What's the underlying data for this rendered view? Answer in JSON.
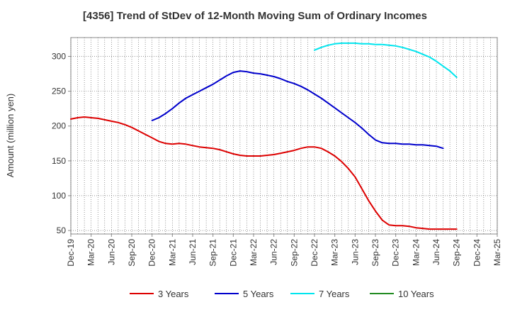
{
  "chart_data": {
    "type": "line",
    "title": "[4356]  Trend of StDev of 12-Month Moving Sum of Ordinary Incomes",
    "xlabel": "",
    "ylabel": "Amount (million yen)",
    "ylim": [
      45,
      327
    ],
    "yticks": [
      50,
      100,
      150,
      200,
      250,
      300
    ],
    "xticks": [
      "Dec-19",
      "Mar-20",
      "Jun-20",
      "Sep-20",
      "Dec-20",
      "Mar-21",
      "Jun-21",
      "Sep-21",
      "Dec-21",
      "Mar-22",
      "Jun-22",
      "Sep-22",
      "Dec-22",
      "Mar-23",
      "Jun-23",
      "Sep-23",
      "Dec-23",
      "Mar-24",
      "Jun-24",
      "Sep-24",
      "Dec-24",
      "Mar-25"
    ],
    "grid": true,
    "legend_position": "bottom",
    "series": [
      {
        "name": "3 Years",
        "color": "#dd0000",
        "start_index": 0,
        "values": [
          210,
          212,
          213,
          212,
          211,
          209,
          207,
          205,
          202,
          198,
          193,
          188,
          183,
          178,
          175,
          174,
          175,
          174,
          172,
          170,
          169,
          168,
          166,
          163,
          160,
          158,
          157,
          157,
          157,
          158,
          159,
          161,
          163,
          165,
          168,
          170,
          170,
          168,
          163,
          157,
          149,
          139,
          127,
          110,
          93,
          78,
          65,
          58,
          57,
          57,
          56,
          54,
          53,
          52,
          52,
          52,
          52,
          52
        ]
      },
      {
        "name": "5 Years",
        "color": "#0000cc",
        "start_index": 12,
        "values": [
          208,
          212,
          218,
          225,
          233,
          240,
          245,
          250,
          255,
          260,
          266,
          272,
          277,
          279,
          278,
          276,
          275,
          273,
          271,
          268,
          264,
          261,
          257,
          252,
          246,
          240,
          233,
          226,
          219,
          212,
          205,
          197,
          188,
          180,
          176,
          175,
          175,
          174,
          174,
          173,
          173,
          172,
          171,
          168
        ]
      },
      {
        "name": "7 Years",
        "color": "#00e5ee",
        "start_index": 36,
        "values": [
          309,
          313,
          316,
          318,
          319,
          319,
          319,
          318,
          318,
          317,
          317,
          316,
          315,
          313,
          310,
          307,
          303,
          299,
          293,
          286,
          279,
          270
        ]
      },
      {
        "name": "10 Years",
        "color": "#228b22",
        "start_index": 0,
        "values": []
      }
    ]
  }
}
